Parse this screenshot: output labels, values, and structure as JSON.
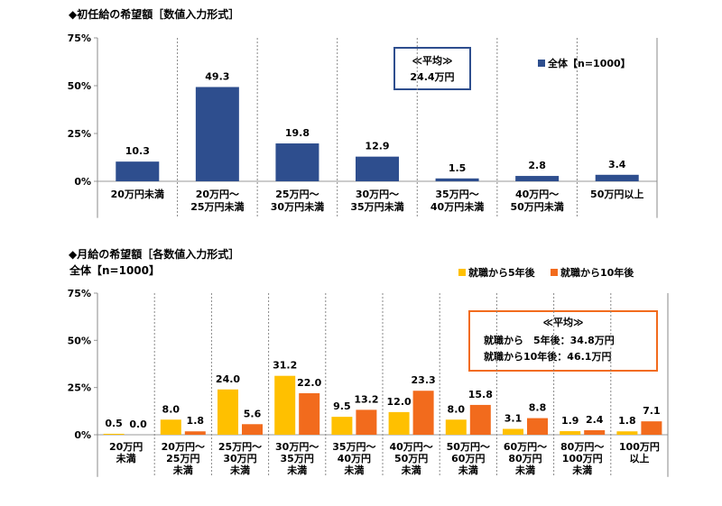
{
  "chart_data": [
    {
      "type": "bar",
      "title": "◆初任給の希望額［数値入力形式］",
      "ylim": [
        0,
        75
      ],
      "yticks": [
        "0%",
        "25%",
        "50%",
        "75%"
      ],
      "ytick_values": [
        0,
        25,
        50,
        75
      ],
      "categories": [
        [
          "20万円未満"
        ],
        [
          "20万円～",
          "25万円未満"
        ],
        [
          "25万円～",
          "30万円未満"
        ],
        [
          "30万円～",
          "35万円未満"
        ],
        [
          "35万円～",
          "40万円未満"
        ],
        [
          "40万円～",
          "50万円未満"
        ],
        [
          "50万円以上"
        ]
      ],
      "series": [
        {
          "name": "全体【n=1000】",
          "color": "#2E4E8E",
          "values": [
            10.3,
            49.3,
            19.8,
            12.9,
            1.5,
            2.8,
            3.4
          ]
        }
      ],
      "value_labels": [
        "10.3",
        "49.3",
        "19.8",
        "12.9",
        "1.5",
        "2.8",
        "3.4"
      ],
      "average_box": {
        "line1": "≪平均≫",
        "line2": "24.4万円",
        "border_color": "#2E4E8E"
      },
      "grid": false,
      "legend_position": "top-right"
    },
    {
      "type": "bar",
      "title": "◆月給の希望額［各数値入力形式］",
      "subtitle": "全体【n=1000】",
      "ylim": [
        0,
        75
      ],
      "yticks": [
        "0%",
        "25%",
        "50%",
        "75%"
      ],
      "ytick_values": [
        0,
        25,
        50,
        75
      ],
      "categories": [
        [
          "20万円",
          "未満"
        ],
        [
          "20万円～",
          "25万円",
          "未満"
        ],
        [
          "25万円～",
          "30万円",
          "未満"
        ],
        [
          "30万円～",
          "35万円",
          "未満"
        ],
        [
          "35万円～",
          "40万円",
          "未満"
        ],
        [
          "40万円～",
          "50万円",
          "未満"
        ],
        [
          "50万円～",
          "60万円",
          "未満"
        ],
        [
          "60万円～",
          "80万円",
          "未満"
        ],
        [
          "80万円～",
          "100万円",
          "未満"
        ],
        [
          "100万円",
          "以上"
        ]
      ],
      "series": [
        {
          "name": "就職から5年後",
          "color": "#FFC000",
          "values": [
            0.5,
            8.0,
            24.0,
            31.2,
            9.5,
            12.0,
            8.0,
            3.1,
            1.9,
            1.8
          ],
          "labels": [
            "0.5",
            "8.0",
            "24.0",
            "31.2",
            "9.5",
            "12.0",
            "8.0",
            "3.1",
            "1.9",
            "1.8"
          ]
        },
        {
          "name": "就職から10年後",
          "color": "#F26B1D",
          "values": [
            0.0,
            1.8,
            5.6,
            22.0,
            13.2,
            23.3,
            15.8,
            8.8,
            2.4,
            7.1
          ],
          "labels": [
            "0.0",
            "1.8",
            "5.6",
            "22.0",
            "13.2",
            "23.3",
            "15.8",
            "8.8",
            "2.4",
            "7.1"
          ]
        }
      ],
      "average_box": {
        "line1": "≪平均≫",
        "line2": "就職から　5年後：34.8万円",
        "line3": "就職から10年後：46.1万円",
        "border_color": "#F26B1D"
      },
      "grid": false,
      "legend_position": "top-right"
    }
  ]
}
